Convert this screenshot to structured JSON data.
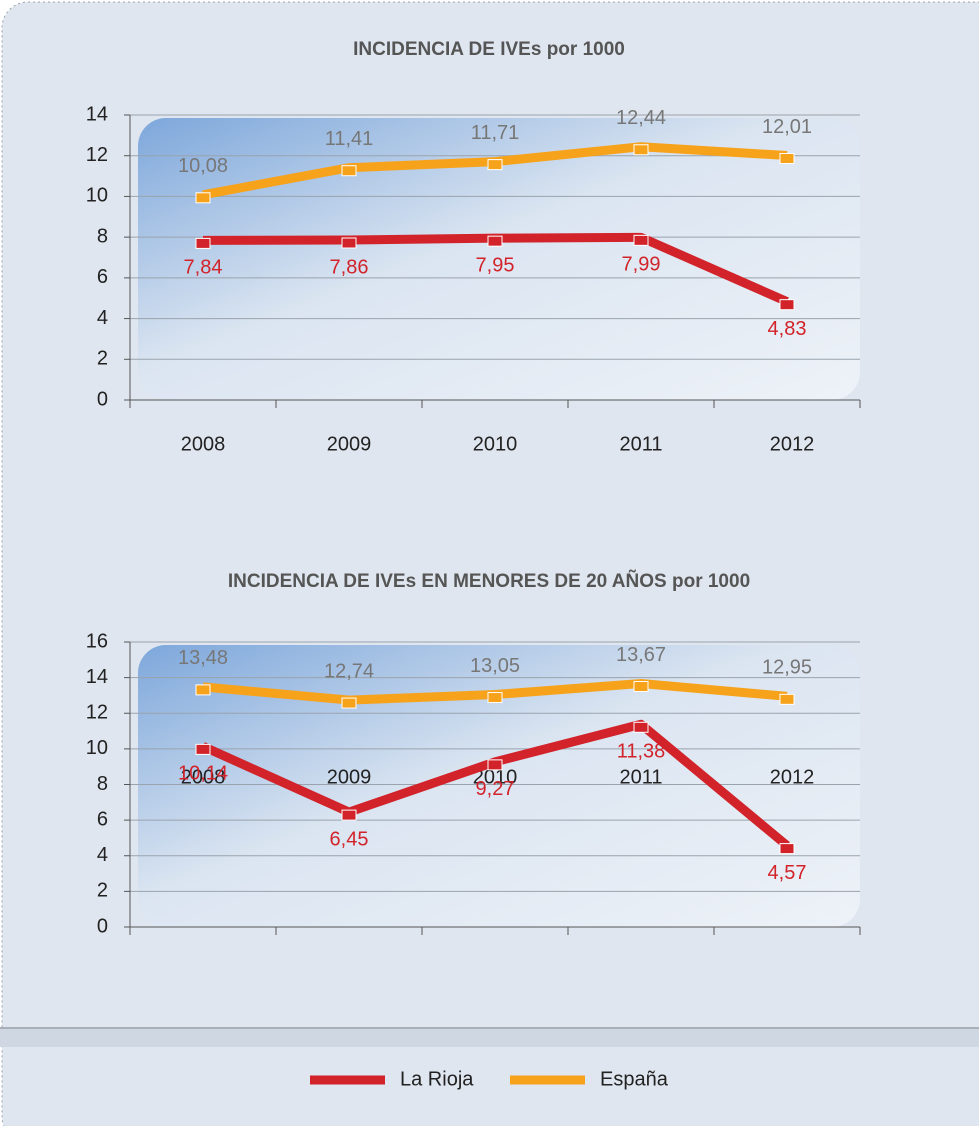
{
  "chart_data": [
    {
      "type": "line",
      "title": "INCIDENCIA DE IVEs por 1000",
      "categories": [
        "2008",
        "2009",
        "2010",
        "2011",
        "2012"
      ],
      "ylim": [
        0,
        14
      ],
      "yticks": [
        0,
        2,
        4,
        6,
        8,
        10,
        12,
        14
      ],
      "grid": true,
      "series": [
        {
          "name": "La Rioja",
          "color": "#d2232a",
          "values": [
            7.84,
            7.86,
            7.95,
            7.99,
            4.83
          ],
          "value_labels": [
            "7,84",
            "7,86",
            "7,95",
            "7,99",
            "4,83"
          ]
        },
        {
          "name": "España",
          "color": "#f7a21b",
          "values": [
            10.08,
            11.41,
            11.71,
            12.44,
            12.01
          ],
          "value_labels": [
            "10,08",
            "11,41",
            "11,71",
            "12,44",
            "12,01"
          ]
        }
      ]
    },
    {
      "type": "line",
      "title": "INCIDENCIA DE IVEs EN MENORES DE 20 AÑOS por 1000",
      "categories": [
        "2008",
        "2009",
        "2010",
        "2011",
        "2012"
      ],
      "ylim": [
        0,
        16
      ],
      "yticks": [
        0,
        2,
        4,
        6,
        8,
        10,
        12,
        14,
        16
      ],
      "grid": true,
      "series": [
        {
          "color": "#d2232a",
          "values": [
            10.14,
            6.45,
            9.27,
            11.38,
            4.57
          ],
          "value_labels": [
            "10,14",
            "6,45",
            "9,27",
            "11,38",
            "4,57"
          ]
        },
        {
          "color": "#f7a21b",
          "values": [
            13.48,
            12.74,
            13.05,
            13.67,
            12.95
          ],
          "value_labels": [
            "13,48",
            "12,74",
            "13,05",
            "13,67",
            "12,95"
          ]
        }
      ]
    }
  ]
}
